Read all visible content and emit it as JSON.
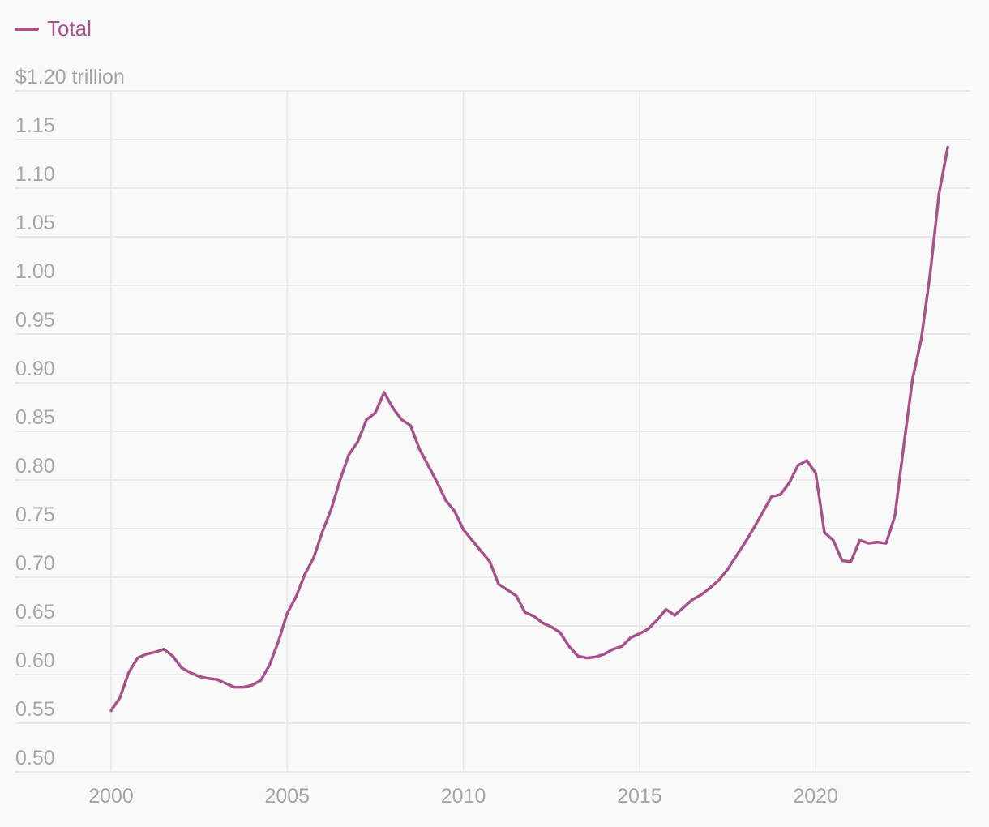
{
  "chart_data": {
    "type": "line",
    "legend": [
      {
        "label": "Total",
        "color": "#a7528a"
      }
    ],
    "ylim": [
      0.5,
      1.2
    ],
    "y_ticks": [
      {
        "value": 1.2,
        "label": "$1.20 trillion"
      },
      {
        "value": 1.15,
        "label": "1.15"
      },
      {
        "value": 1.1,
        "label": "1.10"
      },
      {
        "value": 1.05,
        "label": "1.05"
      },
      {
        "value": 1.0,
        "label": "1.00"
      },
      {
        "value": 0.95,
        "label": "0.95"
      },
      {
        "value": 0.9,
        "label": "0.90"
      },
      {
        "value": 0.85,
        "label": "0.85"
      },
      {
        "value": 0.8,
        "label": "0.80"
      },
      {
        "value": 0.75,
        "label": "0.75"
      },
      {
        "value": 0.7,
        "label": "0.70"
      },
      {
        "value": 0.65,
        "label": "0.65"
      },
      {
        "value": 0.6,
        "label": "0.60"
      },
      {
        "value": 0.55,
        "label": "0.55"
      },
      {
        "value": 0.5,
        "label": "0.50"
      }
    ],
    "xlim": [
      2000,
      2024
    ],
    "x_ticks": [
      {
        "value": 2000,
        "label": "2000"
      },
      {
        "value": 2005,
        "label": "2005"
      },
      {
        "value": 2010,
        "label": "2010"
      },
      {
        "value": 2015,
        "label": "2015"
      },
      {
        "value": 2020,
        "label": "2020"
      }
    ],
    "grid": true,
    "series": [
      {
        "name": "Total",
        "color": "#a7528a",
        "x": [
          2000.0,
          2000.25,
          2000.5,
          2000.75,
          2001.0,
          2001.25,
          2001.5,
          2001.75,
          2002.0,
          2002.25,
          2002.5,
          2002.75,
          2003.0,
          2003.25,
          2003.5,
          2003.75,
          2004.0,
          2004.25,
          2004.5,
          2004.75,
          2005.0,
          2005.25,
          2005.5,
          2005.75,
          2006.0,
          2006.25,
          2006.5,
          2006.75,
          2007.0,
          2007.25,
          2007.5,
          2007.75,
          2008.0,
          2008.25,
          2008.5,
          2008.75,
          2009.0,
          2009.25,
          2009.5,
          2009.75,
          2010.0,
          2010.25,
          2010.5,
          2010.75,
          2011.0,
          2011.25,
          2011.5,
          2011.75,
          2012.0,
          2012.25,
          2012.5,
          2012.75,
          2013.0,
          2013.25,
          2013.5,
          2013.75,
          2014.0,
          2014.25,
          2014.5,
          2014.75,
          2015.0,
          2015.25,
          2015.5,
          2015.75,
          2016.0,
          2016.25,
          2016.5,
          2016.75,
          2017.0,
          2017.25,
          2017.5,
          2017.75,
          2018.0,
          2018.25,
          2018.5,
          2018.75,
          2019.0,
          2019.25,
          2019.5,
          2019.75,
          2020.0,
          2020.25,
          2020.5,
          2020.75,
          2021.0,
          2021.25,
          2021.5,
          2021.75,
          2022.0,
          2022.25,
          2022.5,
          2022.75,
          2023.0,
          2023.25,
          2023.5,
          2023.75
        ],
        "values": [
          0.563,
          0.576,
          0.602,
          0.617,
          0.621,
          0.623,
          0.626,
          0.619,
          0.607,
          0.602,
          0.598,
          0.596,
          0.595,
          0.591,
          0.587,
          0.587,
          0.589,
          0.594,
          0.61,
          0.634,
          0.663,
          0.68,
          0.703,
          0.72,
          0.747,
          0.77,
          0.8,
          0.826,
          0.839,
          0.862,
          0.869,
          0.89,
          0.874,
          0.862,
          0.856,
          0.832,
          0.815,
          0.798,
          0.779,
          0.768,
          0.749,
          0.738,
          0.727,
          0.716,
          0.693,
          0.687,
          0.681,
          0.664,
          0.66,
          0.653,
          0.649,
          0.643,
          0.629,
          0.619,
          0.617,
          0.618,
          0.621,
          0.626,
          0.629,
          0.638,
          0.642,
          0.647,
          0.656,
          0.667,
          0.661,
          0.669,
          0.677,
          0.682,
          0.689,
          0.697,
          0.708,
          0.722,
          0.736,
          0.751,
          0.767,
          0.783,
          0.785,
          0.797,
          0.815,
          0.82,
          0.807,
          0.746,
          0.738,
          0.717,
          0.716,
          0.738,
          0.735,
          0.736,
          0.735,
          0.763,
          0.835,
          0.904,
          0.945,
          1.012,
          1.094,
          1.142
        ]
      }
    ]
  }
}
